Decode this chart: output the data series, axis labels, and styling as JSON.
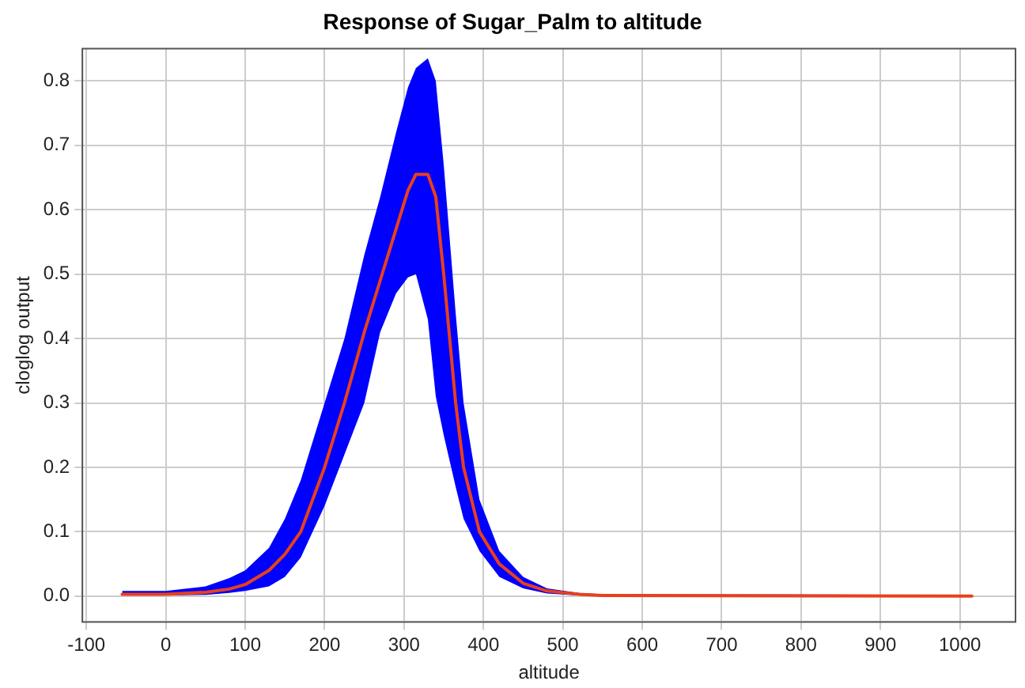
{
  "chart_data": {
    "type": "line",
    "title": "Response of Sugar_Palm to altitude",
    "xlabel": "altitude",
    "ylabel": "cloglog output",
    "x": [
      -55,
      0,
      50,
      80,
      100,
      130,
      150,
      170,
      200,
      225,
      250,
      270,
      290,
      305,
      315,
      330,
      340,
      350,
      365,
      375,
      395,
      420,
      450,
      480,
      520,
      550,
      1015
    ],
    "series": [
      {
        "color": "#e8401c",
        "values": [
          0.003,
          0.003,
          0.006,
          0.011,
          0.018,
          0.04,
          0.065,
          0.1,
          0.2,
          0.3,
          0.41,
          0.49,
          0.57,
          0.63,
          0.655,
          0.655,
          0.62,
          0.5,
          0.3,
          0.2,
          0.1,
          0.05,
          0.02,
          0.008,
          0.003,
          0.001,
          0
        ],
        "lower": [
          0.001,
          0.001,
          0.002,
          0.005,
          0.008,
          0.015,
          0.03,
          0.06,
          0.14,
          0.22,
          0.3,
          0.41,
          0.47,
          0.495,
          0.5,
          0.43,
          0.31,
          0.25,
          0.17,
          0.12,
          0.07,
          0.03,
          0.012,
          0.004,
          0.001,
          0,
          0
        ],
        "upper": [
          0.008,
          0.008,
          0.015,
          0.028,
          0.04,
          0.075,
          0.12,
          0.18,
          0.3,
          0.4,
          0.53,
          0.62,
          0.72,
          0.79,
          0.82,
          0.835,
          0.8,
          0.67,
          0.44,
          0.3,
          0.15,
          0.07,
          0.03,
          0.012,
          0.005,
          0.003,
          0.002
        ]
      }
    ],
    "xlim": [
      -105,
      1070
    ],
    "xticks": [
      -100,
      0,
      100,
      200,
      300,
      400,
      500,
      600,
      700,
      800,
      900,
      1000
    ],
    "ylim": [
      -0.04,
      0.85
    ],
    "yticks": [
      {
        "value": 0,
        "label": "0.0"
      },
      0.1,
      0.2,
      0.3,
      0.4,
      0.5,
      0.6,
      0.7,
      0.8
    ],
    "grid": true,
    "marker": "none",
    "line_style": "solid"
  }
}
